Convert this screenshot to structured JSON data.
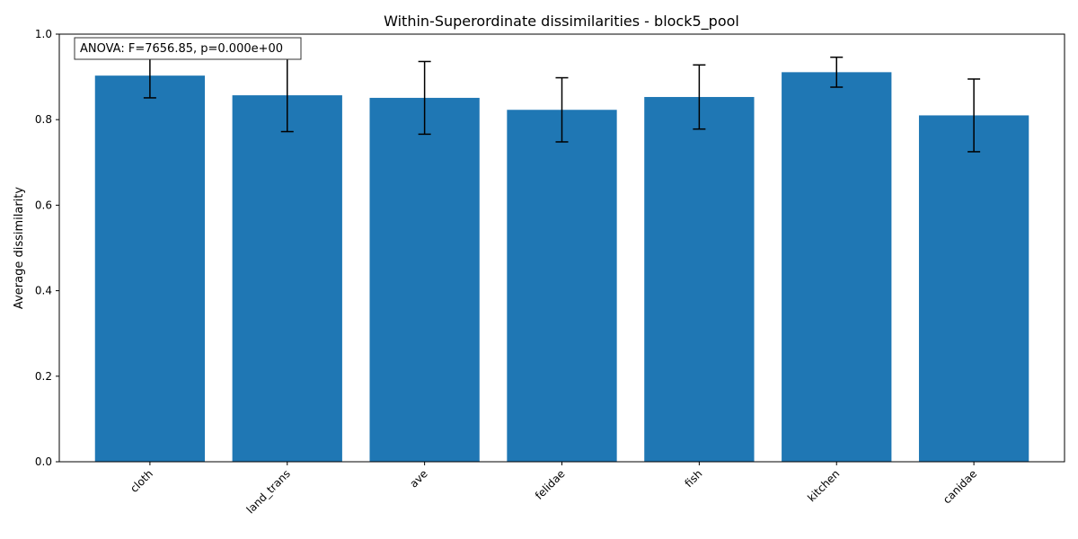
{
  "chart_data": {
    "type": "bar",
    "title": "Within-Superordinate dissimilarities - block5_pool",
    "xlabel": "",
    "ylabel": "Average dissimilarity",
    "ylim": [
      0,
      1.0
    ],
    "yticks": [
      0.0,
      0.2,
      0.4,
      0.6,
      0.8,
      1.0
    ],
    "ytick_labels": [
      "0.0",
      "0.2",
      "0.4",
      "0.6",
      "0.8",
      "1.0"
    ],
    "categories": [
      "cloth",
      "land_trans",
      "ave",
      "felidae",
      "fish",
      "kitchen",
      "canidae"
    ],
    "values": [
      0.903,
      0.857,
      0.851,
      0.823,
      0.853,
      0.911,
      0.81
    ],
    "errors": [
      0.052,
      0.085,
      0.085,
      0.075,
      0.075,
      0.035,
      0.085
    ],
    "bar_color": "#1f77b4",
    "grid": false,
    "annotation": "ANOVA: F=7656.85, p=0.000e+00"
  }
}
